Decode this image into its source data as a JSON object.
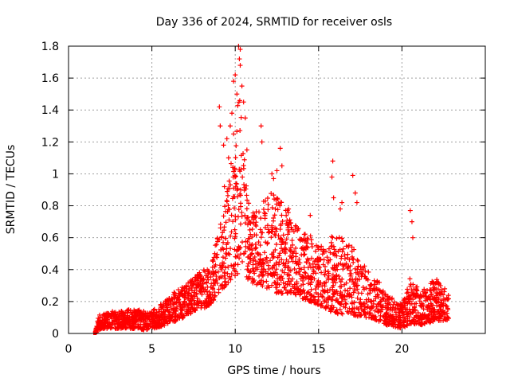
{
  "chart_data": {
    "type": "scatter",
    "title": "Day 336 of 2024, SRMTID for receiver osls",
    "xlabel": "GPS time / hours",
    "ylabel": "SRMTID / TECUs",
    "xlim": [
      0,
      25
    ],
    "ylim": [
      0,
      1.8
    ],
    "xticks": [
      0,
      5,
      10,
      15,
      20
    ],
    "yticks": [
      0,
      0.2,
      0.4,
      0.6,
      0.8,
      1,
      1.2,
      1.4,
      1.6,
      1.8
    ],
    "xtick_labels": [
      "0",
      "5",
      "10",
      "15",
      "20"
    ],
    "ytick_labels": [
      "0",
      "0.2",
      "0.4",
      "0.6",
      "0.8",
      "1",
      "1.2",
      "1.4",
      "1.6",
      "1.8"
    ],
    "grid": true,
    "marker": "+",
    "color": "#ff0000",
    "envelope": {
      "description": "approximate shape of the scattered data: [hour, lower, upper]",
      "points": [
        [
          1.6,
          0.0,
          0.02
        ],
        [
          1.8,
          0.02,
          0.12
        ],
        [
          2.0,
          0.03,
          0.13
        ],
        [
          2.5,
          0.03,
          0.14
        ],
        [
          3.0,
          0.03,
          0.14
        ],
        [
          3.5,
          0.03,
          0.15
        ],
        [
          4.0,
          0.03,
          0.16
        ],
        [
          4.5,
          0.02,
          0.14
        ],
        [
          5.0,
          0.03,
          0.14
        ],
        [
          5.5,
          0.04,
          0.18
        ],
        [
          6.0,
          0.06,
          0.22
        ],
        [
          6.5,
          0.08,
          0.28
        ],
        [
          7.0,
          0.1,
          0.3
        ],
        [
          7.5,
          0.14,
          0.35
        ],
        [
          8.0,
          0.15,
          0.4
        ],
        [
          8.5,
          0.18,
          0.45
        ],
        [
          9.0,
          0.25,
          0.65
        ],
        [
          9.5,
          0.3,
          0.9
        ],
        [
          10.0,
          0.35,
          1.3
        ],
        [
          10.3,
          0.4,
          1.62
        ],
        [
          10.6,
          0.35,
          1.0
        ],
        [
          11.0,
          0.3,
          0.75
        ],
        [
          11.5,
          0.3,
          0.8
        ],
        [
          12.0,
          0.28,
          0.9
        ],
        [
          12.5,
          0.25,
          0.85
        ],
        [
          13.0,
          0.25,
          0.8
        ],
        [
          13.5,
          0.25,
          0.7
        ],
        [
          14.0,
          0.22,
          0.65
        ],
        [
          14.5,
          0.2,
          0.62
        ],
        [
          15.0,
          0.18,
          0.55
        ],
        [
          15.5,
          0.15,
          0.55
        ],
        [
          16.0,
          0.12,
          0.65
        ],
        [
          16.5,
          0.12,
          0.6
        ],
        [
          17.0,
          0.12,
          0.55
        ],
        [
          17.5,
          0.1,
          0.45
        ],
        [
          18.0,
          0.1,
          0.4
        ],
        [
          18.5,
          0.08,
          0.35
        ],
        [
          19.0,
          0.05,
          0.25
        ],
        [
          19.5,
          0.04,
          0.22
        ],
        [
          20.0,
          0.03,
          0.18
        ],
        [
          20.5,
          0.06,
          0.35
        ],
        [
          21.0,
          0.05,
          0.28
        ],
        [
          21.5,
          0.06,
          0.3
        ],
        [
          22.0,
          0.08,
          0.35
        ],
        [
          22.5,
          0.08,
          0.3
        ],
        [
          22.8,
          0.08,
          0.25
        ]
      ]
    },
    "outliers": [
      [
        10.2,
        1.8
      ],
      [
        10.3,
        1.78
      ],
      [
        10.25,
        1.72
      ],
      [
        10.3,
        1.68
      ],
      [
        10.0,
        1.62
      ],
      [
        9.9,
        1.58
      ],
      [
        10.4,
        1.55
      ],
      [
        10.1,
        1.5
      ],
      [
        9.05,
        1.42
      ],
      [
        10.5,
        1.45
      ],
      [
        9.8,
        1.38
      ],
      [
        9.1,
        1.3
      ],
      [
        10.6,
        1.35
      ],
      [
        11.55,
        1.3
      ],
      [
        9.7,
        1.3
      ],
      [
        9.5,
        1.22
      ],
      [
        11.6,
        1.2
      ],
      [
        12.7,
        1.16
      ],
      [
        15.85,
        1.08
      ],
      [
        10.7,
        1.15
      ],
      [
        9.3,
        1.18
      ],
      [
        12.2,
        1.0
      ],
      [
        12.8,
        1.05
      ],
      [
        17.05,
        0.99
      ],
      [
        9.6,
        1.1
      ],
      [
        15.8,
        0.98
      ],
      [
        12.5,
        1.02
      ],
      [
        17.2,
        0.88
      ],
      [
        16.4,
        0.82
      ],
      [
        20.5,
        0.77
      ],
      [
        20.6,
        0.7
      ],
      [
        17.3,
        0.82
      ],
      [
        20.65,
        0.6
      ],
      [
        9.35,
        0.92
      ],
      [
        15.9,
        0.85
      ],
      [
        14.5,
        0.74
      ],
      [
        12.3,
        0.97
      ],
      [
        16.3,
        0.78
      ],
      [
        13.2,
        0.78
      ],
      [
        9.9,
        1.25
      ]
    ]
  }
}
